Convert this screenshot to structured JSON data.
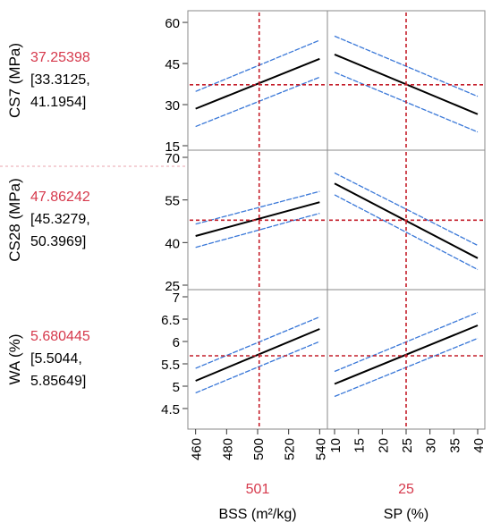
{
  "chart_data": {
    "type": "line",
    "title": "",
    "factors": [
      {
        "name": "BSS (m²/kg)",
        "current": "501",
        "current_value": 501,
        "xlim": [
          455,
          545
        ],
        "ticks": [
          460,
          480,
          500,
          520,
          540
        ]
      },
      {
        "name": "SP (%)",
        "current": "25",
        "current_value": 25,
        "xlim": [
          8.5,
          41.5
        ],
        "ticks": [
          10,
          15,
          20,
          25,
          30,
          35,
          40
        ]
      }
    ],
    "responses": [
      {
        "name": "CS7 (MPa)",
        "predicted": "37.25398",
        "ci_line1": "[33.3125,",
        "ci_line2": "41.1954]",
        "ylim": [
          15,
          61
        ],
        "ticks": [
          15,
          30,
          45,
          60
        ],
        "current_value": 37.25,
        "profiles": [
          {
            "x": [
              460,
              540
            ],
            "y": [
              28.5,
              46.7
            ],
            "ci_upper": [
              34.8,
              53.5
            ],
            "ci_lower": [
              22.0,
              40.0
            ]
          },
          {
            "x": [
              10,
              40
            ],
            "y": [
              48.3,
              26.5
            ],
            "ci_upper": [
              55.0,
              33.0
            ],
            "ci_lower": [
              41.8,
              20.0
            ]
          }
        ]
      },
      {
        "name": "CS28 (MPa)",
        "predicted": "47.86242",
        "ci_line1": "[45.3279,",
        "ci_line2": "50.3969]",
        "ylim": [
          25,
          70
        ],
        "ticks": [
          25,
          40,
          55,
          70
        ],
        "current_value": 47.86,
        "profiles": [
          {
            "x": [
              460,
              540
            ],
            "y": [
              42.3,
              54.2
            ],
            "ci_upper": [
              46.5,
              58.0
            ],
            "ci_lower": [
              38.3,
              50.3
            ]
          },
          {
            "x": [
              10,
              40
            ],
            "y": [
              60.8,
              34.5
            ],
            "ci_upper": [
              64.5,
              39.0
            ],
            "ci_lower": [
              56.8,
              30.5
            ]
          }
        ]
      },
      {
        "name": "WA (%)",
        "predicted": "5.680445",
        "ci_line1": "[5.5044,",
        "ci_line2": "5.85649]",
        "ylim": [
          4.2,
          7
        ],
        "ticks": [
          4.5,
          5,
          5.5,
          6,
          6.5,
          7
        ],
        "current_value": 5.68,
        "profiles": [
          {
            "x": [
              460,
              540
            ],
            "y": [
              5.12,
              6.28
            ],
            "ci_upper": [
              5.4,
              6.55
            ],
            "ci_lower": [
              4.85,
              6.0
            ]
          },
          {
            "x": [
              10,
              40
            ],
            "y": [
              5.05,
              6.36
            ],
            "ci_upper": [
              5.33,
              6.65
            ],
            "ci_lower": [
              4.77,
              6.07
            ]
          }
        ]
      }
    ]
  },
  "colors": {
    "accent": "#d6394c",
    "ci_band": "#3a78d8",
    "profile_line": "#000000",
    "frame": "#8a8a8a",
    "reference_line": "#c41e2a"
  }
}
